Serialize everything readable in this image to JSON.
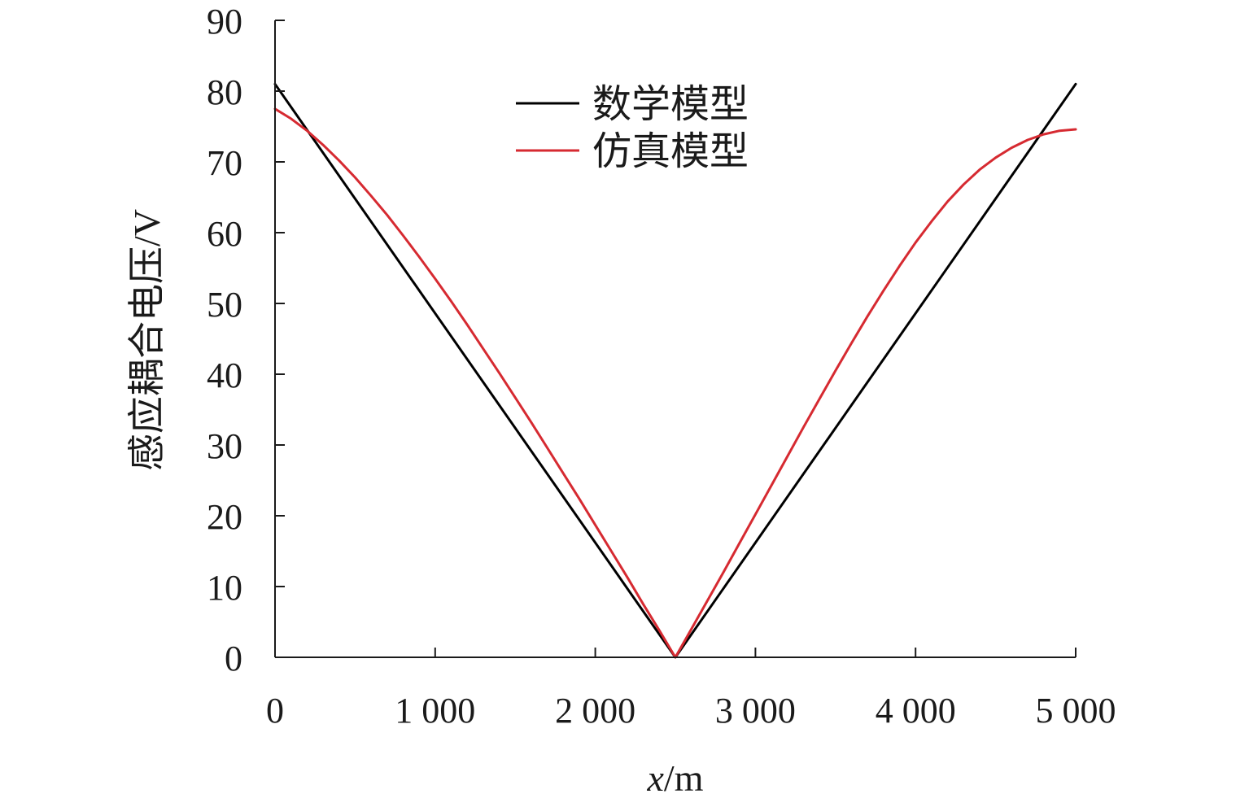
{
  "chart_data": {
    "type": "line",
    "title": "",
    "xlabel_italic": "x",
    "xlabel_rest": "/m",
    "ylabel": "感应耦合电压/V",
    "xlim": [
      0,
      5000
    ],
    "ylim": [
      0,
      90
    ],
    "xticks": [
      0,
      1000,
      2000,
      3000,
      4000,
      5000
    ],
    "xtick_labels": [
      "0",
      "1 000",
      "2 000",
      "3 000",
      "4 000",
      "5 000"
    ],
    "yticks": [
      0,
      10,
      20,
      30,
      40,
      50,
      60,
      70,
      80,
      90
    ],
    "ytick_labels": [
      "0",
      "10",
      "20",
      "30",
      "40",
      "50",
      "60",
      "70",
      "80",
      "90"
    ],
    "grid": false,
    "legend_position": "top-center",
    "series": [
      {
        "name": "数学模型",
        "color": "#000000",
        "x": [
          0,
          2500,
          5000
        ],
        "y": [
          81,
          0,
          81
        ]
      },
      {
        "name": "仿真模型",
        "color": "#d62a31",
        "x": [
          0,
          100,
          200,
          300,
          400,
          500,
          600,
          700,
          800,
          900,
          1000,
          1100,
          1200,
          1300,
          1400,
          1500,
          1600,
          1700,
          1800,
          1900,
          2000,
          2100,
          2200,
          2300,
          2400,
          2500,
          2600,
          2700,
          2800,
          2900,
          3000,
          3100,
          3200,
          3300,
          3400,
          3500,
          3600,
          3700,
          3800,
          3900,
          4000,
          4100,
          4200,
          4300,
          4400,
          4500,
          4600,
          4700,
          4800,
          4900,
          5000
        ],
        "y": [
          77.5,
          76.1,
          74.4,
          72.4,
          70.2,
          67.8,
          65.2,
          62.5,
          59.6,
          56.6,
          53.5,
          50.3,
          47.0,
          43.6,
          40.2,
          36.7,
          33.2,
          29.6,
          26.0,
          22.4,
          18.7,
          15.0,
          11.3,
          7.5,
          3.8,
          0.0,
          4.0,
          8.0,
          12.0,
          16.1,
          20.2,
          24.3,
          28.4,
          32.5,
          36.5,
          40.5,
          44.4,
          48.2,
          51.8,
          55.3,
          58.6,
          61.6,
          64.4,
          66.8,
          68.9,
          70.6,
          72.0,
          73.1,
          73.9,
          74.4,
          74.6
        ]
      }
    ]
  }
}
